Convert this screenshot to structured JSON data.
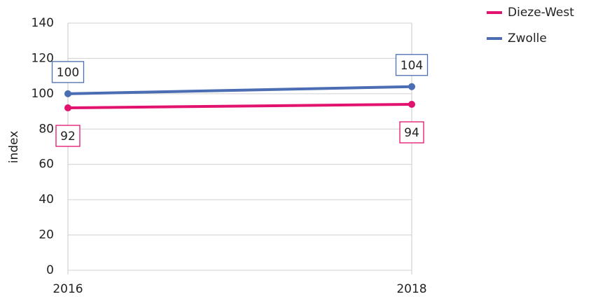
{
  "chart_data": {
    "type": "line",
    "y_label": "index",
    "x": [
      2016,
      2018
    ],
    "xlim": [
      2016,
      2018
    ],
    "xticks": [
      2016,
      2018
    ],
    "ylim": [
      0,
      140
    ],
    "yticks": [
      0,
      20,
      40,
      60,
      80,
      100,
      120,
      140
    ],
    "grid": true,
    "legend": "top-right",
    "series": [
      {
        "name": "Dieze-West",
        "color": "#e2136e",
        "values": [
          92,
          94
        ]
      },
      {
        "name": "Zwolle",
        "color": "#4a6db3",
        "values": [
          100,
          104
        ]
      }
    ]
  }
}
